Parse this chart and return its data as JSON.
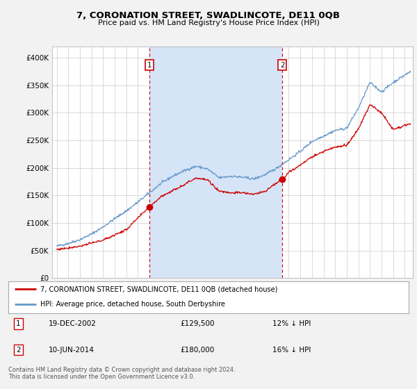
{
  "title": "7, CORONATION STREET, SWADLINCOTE, DE11 0QB",
  "subtitle": "Price paid vs. HM Land Registry's House Price Index (HPI)",
  "background_color": "#f2f2f2",
  "plot_bg_color": "#ffffff",
  "highlight_color": "#d6e4f7",
  "ylim": [
    0,
    420000
  ],
  "yticks": [
    0,
    50000,
    100000,
    150000,
    200000,
    250000,
    300000,
    350000,
    400000
  ],
  "xlim_start": 1994.6,
  "xlim_end": 2025.7,
  "sale1": {
    "date_x": 2002.97,
    "price": 129500,
    "label": "1"
  },
  "sale2": {
    "date_x": 2014.44,
    "price": 180000,
    "label": "2"
  },
  "legend_line1": "7, CORONATION STREET, SWADLINCOTE, DE11 0QB (detached house)",
  "legend_line2": "HPI: Average price, detached house, South Derbyshire",
  "annotation1": [
    "1",
    "19-DEC-2002",
    "£129,500",
    "12% ↓ HPI"
  ],
  "annotation2": [
    "2",
    "10-JUN-2014",
    "£180,000",
    "16% ↓ HPI"
  ],
  "footer": "Contains HM Land Registry data © Crown copyright and database right 2024.\nThis data is licensed under the Open Government Licence v3.0.",
  "red_line_color": "#cc0000",
  "blue_line_color": "#6699cc",
  "vline_color": "#cc0000",
  "grid_color": "#cccccc",
  "hpi_key_years": [
    1995,
    1996,
    1997,
    1998,
    1999,
    2000,
    2001,
    2002,
    2003,
    2004,
    2005,
    2006,
    2007,
    2008,
    2009,
    2010,
    2011,
    2012,
    2013,
    2014,
    2015,
    2016,
    2017,
    2018,
    2019,
    2020,
    2021,
    2022,
    2023,
    2024,
    2025.5
  ],
  "hpi_key_vals": [
    58000,
    63000,
    70000,
    80000,
    93000,
    108000,
    122000,
    138000,
    155000,
    172000,
    185000,
    195000,
    203000,
    198000,
    182000,
    185000,
    183000,
    180000,
    188000,
    200000,
    215000,
    230000,
    248000,
    258000,
    268000,
    272000,
    308000,
    355000,
    338000,
    355000,
    375000
  ],
  "prop_key_years": [
    1995,
    1997,
    1999,
    2001,
    2002.97,
    2004,
    2006,
    2007,
    2008,
    2009,
    2010,
    2011,
    2012,
    2013,
    2014.44,
    2015,
    2016,
    2017,
    2018,
    2019,
    2020,
    2021,
    2022,
    2023,
    2024,
    2025.5
  ],
  "prop_key_vals": [
    52000,
    58000,
    69000,
    88000,
    129500,
    148000,
    170000,
    182000,
    178000,
    158000,
    155000,
    155000,
    152000,
    158000,
    180000,
    192000,
    205000,
    220000,
    230000,
    238000,
    241000,
    270000,
    315000,
    300000,
    270000,
    280000
  ]
}
